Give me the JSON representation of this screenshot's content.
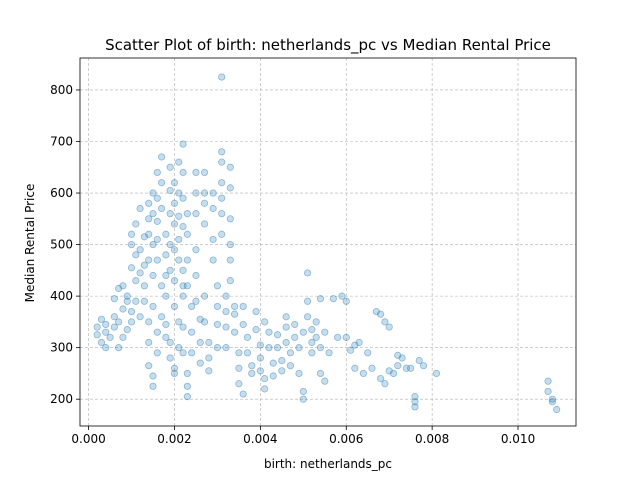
{
  "chart_data": {
    "type": "scatter",
    "title": "Scatter Plot of birth: netherlands_pc vs Median Rental Price",
    "xlabel": "birth: netherlands_pc",
    "ylabel": "Median Rental Price",
    "xlim": [
      -0.0002,
      0.01135
    ],
    "ylim": [
      148,
      862
    ],
    "xticks": [
      0.0,
      0.002,
      0.004,
      0.006,
      0.008,
      0.01
    ],
    "xtick_labels": [
      "0.000",
      "0.002",
      "0.004",
      "0.006",
      "0.008",
      "0.010"
    ],
    "yticks": [
      200,
      300,
      400,
      500,
      600,
      700,
      800
    ],
    "ytick_labels": [
      "200",
      "300",
      "400",
      "500",
      "600",
      "700",
      "800"
    ],
    "grid": true,
    "marker_color": "#1f77b4",
    "marker_alpha": 0.25,
    "series": [
      {
        "values": [
          [
            0.0002,
            325
          ],
          [
            0.0002,
            340
          ],
          [
            0.0003,
            355
          ],
          [
            0.0003,
            310
          ],
          [
            0.0004,
            330
          ],
          [
            0.0004,
            345
          ],
          [
            0.0004,
            300
          ],
          [
            0.0005,
            320
          ],
          [
            0.0006,
            340
          ],
          [
            0.0006,
            360
          ],
          [
            0.0006,
            395
          ],
          [
            0.0007,
            415
          ],
          [
            0.0007,
            350
          ],
          [
            0.0007,
            300
          ],
          [
            0.0008,
            320
          ],
          [
            0.0008,
            375
          ],
          [
            0.0008,
            420
          ],
          [
            0.0009,
            390
          ],
          [
            0.0009,
            335
          ],
          [
            0.0009,
            400
          ],
          [
            0.001,
            350
          ],
          [
            0.001,
            370
          ],
          [
            0.001,
            455
          ],
          [
            0.001,
            500
          ],
          [
            0.001,
            520
          ],
          [
            0.0011,
            540
          ],
          [
            0.0011,
            480
          ],
          [
            0.0011,
            430
          ],
          [
            0.0011,
            390
          ],
          [
            0.0012,
            360
          ],
          [
            0.0012,
            445
          ],
          [
            0.0012,
            570
          ],
          [
            0.0012,
            490
          ],
          [
            0.0013,
            515
          ],
          [
            0.0013,
            460
          ],
          [
            0.0013,
            420
          ],
          [
            0.0013,
            390
          ],
          [
            0.0014,
            550
          ],
          [
            0.0014,
            580
          ],
          [
            0.0014,
            520
          ],
          [
            0.0014,
            470
          ],
          [
            0.0014,
            350
          ],
          [
            0.0014,
            310
          ],
          [
            0.0014,
            265
          ],
          [
            0.0015,
            245
          ],
          [
            0.0015,
            225
          ],
          [
            0.0015,
            600
          ],
          [
            0.0015,
            560
          ],
          [
            0.0015,
            500
          ],
          [
            0.0015,
            440
          ],
          [
            0.0015,
            380
          ],
          [
            0.0016,
            330
          ],
          [
            0.0016,
            290
          ],
          [
            0.0016,
            640
          ],
          [
            0.0016,
            590
          ],
          [
            0.0016,
            545
          ],
          [
            0.0016,
            510
          ],
          [
            0.0016,
            470
          ],
          [
            0.0017,
            420
          ],
          [
            0.0017,
            360
          ],
          [
            0.0017,
            670
          ],
          [
            0.0017,
            620
          ],
          [
            0.0017,
            570
          ],
          [
            0.0018,
            520
          ],
          [
            0.0018,
            480
          ],
          [
            0.0018,
            440
          ],
          [
            0.0018,
            400
          ],
          [
            0.0018,
            345
          ],
          [
            0.0018,
            320
          ],
          [
            0.0019,
            650
          ],
          [
            0.0019,
            605
          ],
          [
            0.0019,
            560
          ],
          [
            0.0019,
            500
          ],
          [
            0.0019,
            450
          ],
          [
            0.0019,
            310
          ],
          [
            0.0019,
            280
          ],
          [
            0.002,
            260
          ],
          [
            0.002,
            250
          ],
          [
            0.002,
            620
          ],
          [
            0.002,
            580
          ],
          [
            0.002,
            540
          ],
          [
            0.002,
            490
          ],
          [
            0.002,
            430
          ],
          [
            0.002,
            380
          ],
          [
            0.0021,
            350
          ],
          [
            0.0021,
            300
          ],
          [
            0.0021,
            660
          ],
          [
            0.0021,
            600
          ],
          [
            0.0021,
            555
          ],
          [
            0.0021,
            510
          ],
          [
            0.0021,
            470
          ],
          [
            0.0022,
            420
          ],
          [
            0.0022,
            695
          ],
          [
            0.0022,
            640
          ],
          [
            0.0022,
            590
          ],
          [
            0.0022,
            535
          ],
          [
            0.0022,
            450
          ],
          [
            0.0022,
            400
          ],
          [
            0.0022,
            340
          ],
          [
            0.0022,
            290
          ],
          [
            0.0023,
            250
          ],
          [
            0.0023,
            225
          ],
          [
            0.0023,
            205
          ],
          [
            0.0023,
            560
          ],
          [
            0.0023,
            520
          ],
          [
            0.0023,
            470
          ],
          [
            0.0023,
            420
          ],
          [
            0.0024,
            380
          ],
          [
            0.0024,
            330
          ],
          [
            0.0024,
            290
          ],
          [
            0.0025,
            640
          ],
          [
            0.0025,
            600
          ],
          [
            0.0025,
            560
          ],
          [
            0.0025,
            490
          ],
          [
            0.0025,
            440
          ],
          [
            0.0025,
            390
          ],
          [
            0.0026,
            355
          ],
          [
            0.0026,
            310
          ],
          [
            0.0026,
            270
          ],
          [
            0.0027,
            640
          ],
          [
            0.0027,
            600
          ],
          [
            0.0027,
            580
          ],
          [
            0.0027,
            540
          ],
          [
            0.0027,
            400
          ],
          [
            0.0027,
            350
          ],
          [
            0.0028,
            310
          ],
          [
            0.0028,
            280
          ],
          [
            0.0028,
            255
          ],
          [
            0.0029,
            600
          ],
          [
            0.0029,
            570
          ],
          [
            0.0029,
            510
          ],
          [
            0.0029,
            470
          ],
          [
            0.003,
            420
          ],
          [
            0.003,
            380
          ],
          [
            0.003,
            345
          ],
          [
            0.003,
            300
          ],
          [
            0.0031,
            680
          ],
          [
            0.0031,
            660
          ],
          [
            0.0031,
            620
          ],
          [
            0.0031,
            590
          ],
          [
            0.0031,
            560
          ],
          [
            0.0031,
            825
          ],
          [
            0.0031,
            520
          ],
          [
            0.0032,
            400
          ],
          [
            0.0032,
            370
          ],
          [
            0.0032,
            340
          ],
          [
            0.0032,
            300
          ],
          [
            0.0033,
            650
          ],
          [
            0.0033,
            610
          ],
          [
            0.0033,
            550
          ],
          [
            0.0033,
            500
          ],
          [
            0.0033,
            470
          ],
          [
            0.0033,
            430
          ],
          [
            0.0034,
            380
          ],
          [
            0.0034,
            365
          ],
          [
            0.0034,
            330
          ],
          [
            0.0035,
            290
          ],
          [
            0.0035,
            260
          ],
          [
            0.0035,
            230
          ],
          [
            0.0036,
            210
          ],
          [
            0.0036,
            380
          ],
          [
            0.0036,
            345
          ],
          [
            0.0037,
            320
          ],
          [
            0.0037,
            290
          ],
          [
            0.0038,
            265
          ],
          [
            0.0038,
            250
          ],
          [
            0.0039,
            370
          ],
          [
            0.0039,
            335
          ],
          [
            0.004,
            305
          ],
          [
            0.004,
            280
          ],
          [
            0.004,
            255
          ],
          [
            0.0041,
            240
          ],
          [
            0.0041,
            220
          ],
          [
            0.0041,
            350
          ],
          [
            0.0042,
            330
          ],
          [
            0.0042,
            300
          ],
          [
            0.0043,
            270
          ],
          [
            0.0043,
            245
          ],
          [
            0.0044,
            325
          ],
          [
            0.0044,
            300
          ],
          [
            0.0045,
            275
          ],
          [
            0.0045,
            255
          ],
          [
            0.0046,
            340
          ],
          [
            0.0046,
            360
          ],
          [
            0.0046,
            310
          ],
          [
            0.0047,
            290
          ],
          [
            0.0047,
            265
          ],
          [
            0.0048,
            345
          ],
          [
            0.0048,
            320
          ],
          [
            0.0049,
            300
          ],
          [
            0.0049,
            250
          ],
          [
            0.005,
            330
          ],
          [
            0.005,
            200
          ],
          [
            0.005,
            215
          ],
          [
            0.0051,
            445
          ],
          [
            0.0051,
            390
          ],
          [
            0.0051,
            360
          ],
          [
            0.0052,
            335
          ],
          [
            0.0052,
            310
          ],
          [
            0.0052,
            290
          ],
          [
            0.0053,
            350
          ],
          [
            0.0053,
            320
          ],
          [
            0.0054,
            395
          ],
          [
            0.0054,
            300
          ],
          [
            0.0054,
            250
          ],
          [
            0.0055,
            330
          ],
          [
            0.0055,
            235
          ],
          [
            0.0056,
            290
          ],
          [
            0.0057,
            395
          ],
          [
            0.0058,
            320
          ],
          [
            0.0059,
            400
          ],
          [
            0.006,
            390
          ],
          [
            0.006,
            320
          ],
          [
            0.0061,
            295
          ],
          [
            0.0062,
            305
          ],
          [
            0.0062,
            260
          ],
          [
            0.0063,
            310
          ],
          [
            0.0064,
            250
          ],
          [
            0.0065,
            290
          ],
          [
            0.0066,
            260
          ],
          [
            0.0067,
            370
          ],
          [
            0.0068,
            365
          ],
          [
            0.0068,
            240
          ],
          [
            0.0069,
            350
          ],
          [
            0.0069,
            230
          ],
          [
            0.007,
            255
          ],
          [
            0.007,
            340
          ],
          [
            0.0071,
            250
          ],
          [
            0.0072,
            285
          ],
          [
            0.0072,
            265
          ],
          [
            0.0073,
            280
          ],
          [
            0.0074,
            260
          ],
          [
            0.0075,
            260
          ],
          [
            0.0076,
            205
          ],
          [
            0.0076,
            195
          ],
          [
            0.0076,
            185
          ],
          [
            0.0077,
            275
          ],
          [
            0.0078,
            265
          ],
          [
            0.0081,
            250
          ],
          [
            0.0107,
            235
          ],
          [
            0.0107,
            215
          ],
          [
            0.0108,
            200
          ],
          [
            0.0108,
            195
          ],
          [
            0.0109,
            180
          ]
        ]
      }
    ]
  }
}
